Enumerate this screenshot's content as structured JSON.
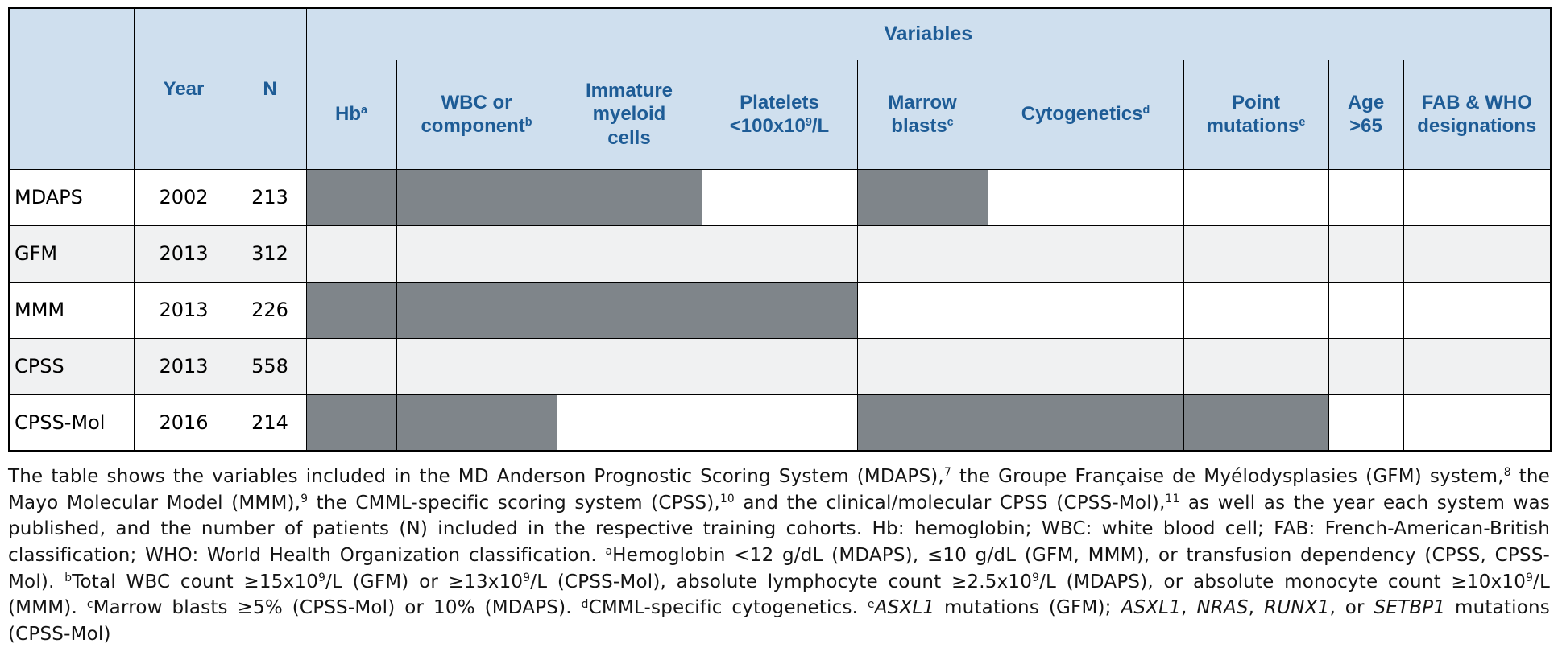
{
  "table": {
    "corner_label": "",
    "year_header": "Year",
    "n_header": "N",
    "variables_header": "Variables",
    "columns": [
      {
        "segments": [
          {
            "t": "Hb"
          },
          {
            "sup": "a"
          }
        ]
      },
      {
        "segments": [
          {
            "t": "WBC or component"
          },
          {
            "sup": "b"
          }
        ]
      },
      {
        "segments": [
          {
            "t": "Immature myeloid cells"
          }
        ]
      },
      {
        "segments": [
          {
            "t": "Platelets <100x10"
          },
          {
            "sup": "9"
          },
          {
            "t": "/L"
          }
        ]
      },
      {
        "segments": [
          {
            "t": "Marrow blasts"
          },
          {
            "sup": "c"
          }
        ]
      },
      {
        "segments": [
          {
            "t": "Cytogenetics"
          },
          {
            "sup": "d"
          }
        ]
      },
      {
        "segments": [
          {
            "t": "Point mutations"
          },
          {
            "sup": "e"
          }
        ]
      },
      {
        "segments": [
          {
            "t": "Age >65"
          }
        ]
      },
      {
        "segments": [
          {
            "t": "FAB & WHO designations"
          }
        ]
      }
    ],
    "rows": [
      {
        "name": "MDAPS",
        "year": "2002",
        "n": "213",
        "filled": [
          1,
          1,
          1,
          0,
          1,
          0,
          0,
          0,
          0
        ]
      },
      {
        "name": "GFM",
        "year": "2013",
        "n": "312",
        "filled": [
          1,
          1,
          0,
          1,
          0,
          0,
          1,
          1,
          0
        ]
      },
      {
        "name": "MMM",
        "year": "2013",
        "n": "226",
        "filled": [
          1,
          1,
          1,
          1,
          0,
          0,
          0,
          0,
          0
        ]
      },
      {
        "name": "CPSS",
        "year": "2013",
        "n": "558",
        "filled": [
          1,
          0,
          0,
          0,
          0,
          1,
          0,
          0,
          1
        ]
      },
      {
        "name": "CPSS-Mol",
        "year": "2016",
        "n": "214",
        "filled": [
          1,
          1,
          0,
          0,
          1,
          1,
          1,
          0,
          0
        ]
      }
    ]
  },
  "caption": {
    "segments": [
      {
        "t": "The table shows the variables included in the MD Anderson Prognostic Scoring System (MDAPS),"
      },
      {
        "sup": "7"
      },
      {
        "t": " the Groupe Française de Myélodysplasies (GFM) system,"
      },
      {
        "sup": "8"
      },
      {
        "t": " the Mayo Molecular Model (MMM),"
      },
      {
        "sup": "9"
      },
      {
        "t": " the CMML-specific scoring system (CPSS),"
      },
      {
        "sup": "10"
      },
      {
        "t": " and the clinical/molecular CPSS (CPSS-Mol),"
      },
      {
        "sup": "11"
      },
      {
        "t": " as well as the year each system was published, and the number of patients (N) included in the respective training cohorts. Hb: hemoglobin; WBC: white blood cell; FAB: French-American-British classification; WHO: World Health Organization classification. "
      },
      {
        "sup": "a"
      },
      {
        "t": "Hemoglobin <12 g/dL (MDAPS), ≤10 g/dL (GFM, MMM), or transfusion dependency (CPSS, CPSS-Mol). "
      },
      {
        "sup": "b"
      },
      {
        "t": "Total WBC count ≥15x10"
      },
      {
        "sup": "9"
      },
      {
        "t": "/L (GFM) or ≥13x10"
      },
      {
        "sup": "9"
      },
      {
        "t": "/L (CPSS-Mol), absolute lymphocyte count ≥2.5x10"
      },
      {
        "sup": "9"
      },
      {
        "t": "/L (MDAPS), or absolute monocyte count ≥10x10"
      },
      {
        "sup": "9"
      },
      {
        "t": "/L (MMM). "
      },
      {
        "sup": "c"
      },
      {
        "t": "Marrow blasts ≥5% (CPSS-Mol) or 10% (MDAPS). "
      },
      {
        "sup": "d"
      },
      {
        "t": "CMML-specific cytogenetics. "
      },
      {
        "sup": "e"
      },
      {
        "i": "ASXL1"
      },
      {
        "t": " mutations (GFM); "
      },
      {
        "i": "ASXL1"
      },
      {
        "t": ", "
      },
      {
        "i": "NRAS"
      },
      {
        "t": ", "
      },
      {
        "i": "RUNX1"
      },
      {
        "t": ", or "
      },
      {
        "i": "SETBP1"
      },
      {
        "t": " mutations (CPSS-Mol)"
      }
    ]
  },
  "colors": {
    "header_background": "#cfdfee",
    "header_text": "#1e5c96",
    "filled_cell": "#7f858a",
    "alt_row_background": "#f0f1f2",
    "border": "#000000",
    "body_text": "#141414"
  }
}
